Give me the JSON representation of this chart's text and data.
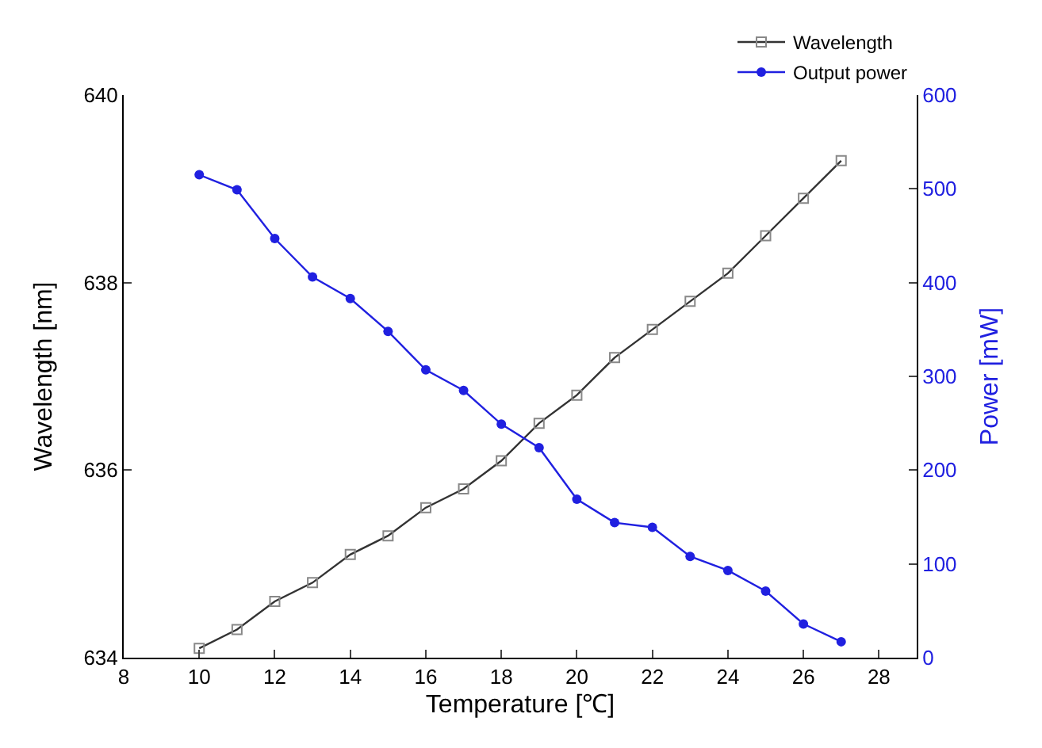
{
  "chart_data": {
    "type": "line",
    "xlabel": "Temperature [℃]",
    "ylabel": "Wavelength [nm]",
    "y2label": "Power [mW]",
    "x": [
      10,
      11,
      12,
      13,
      14,
      15,
      16,
      17,
      18,
      19,
      20,
      21,
      22,
      23,
      24,
      25,
      26,
      27
    ],
    "series": [
      {
        "name": "Wavelength",
        "color": "#333333",
        "marker": "square",
        "values": [
          634.1,
          634.3,
          634.6,
          634.8,
          635.1,
          635.3,
          635.6,
          635.8,
          636.1,
          636.5,
          636.8,
          637.2,
          637.5,
          637.8,
          638.1,
          638.5,
          638.9,
          639.3
        ]
      },
      {
        "name": "Output power",
        "color": "#2020e0",
        "marker": "circle",
        "axis": "y2",
        "values": [
          515,
          499,
          447,
          406,
          383,
          348,
          307,
          285,
          249,
          224,
          169,
          144,
          139,
          108,
          93,
          71,
          36,
          17
        ]
      }
    ],
    "xlim": [
      8,
      29
    ],
    "xticks": [
      8,
      10,
      12,
      14,
      16,
      18,
      20,
      22,
      24,
      26,
      28
    ],
    "ylim": [
      634,
      640
    ],
    "yticks": [
      634,
      636,
      638,
      640
    ],
    "y2lim": [
      0,
      600
    ],
    "y2ticks": [
      0,
      100,
      200,
      300,
      400,
      500,
      600
    ],
    "legend": "top right",
    "line_style": "solid"
  }
}
